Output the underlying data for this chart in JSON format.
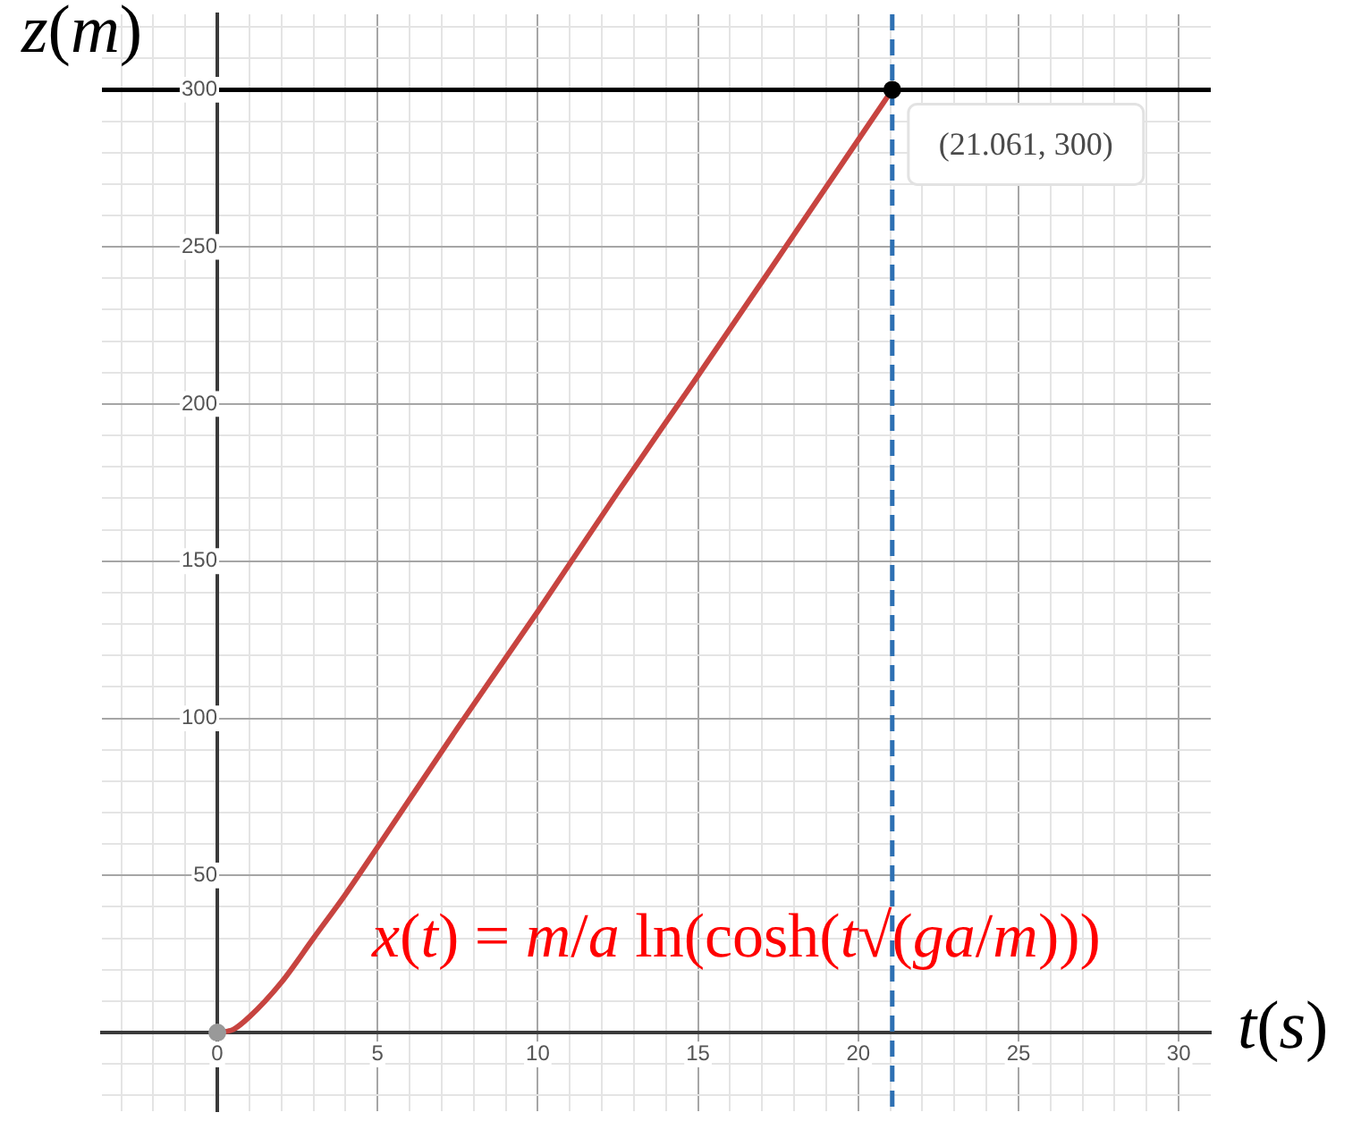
{
  "chart_data": {
    "type": "line",
    "xlabel": "t(s)",
    "ylabel": "z(m)",
    "x": [
      0,
      0.5,
      1,
      2,
      3,
      4,
      5,
      7.5,
      10,
      12.5,
      15,
      18,
      21.061
    ],
    "series": [
      {
        "color": "#c74440",
        "values": [
          0,
          1,
          5,
          16,
          30,
          44,
          59,
          97,
          134,
          172,
          209,
          254,
          300
        ]
      },
      {
        "type": "scatter",
        "marker": "circle",
        "x": [
          0,
          21.061
        ],
        "values": [
          0,
          300
        ],
        "colors": [
          "#999999",
          "#000000"
        ]
      }
    ],
    "xlim": [
      -3.6,
      31
    ],
    "ylim": [
      -25,
      324
    ],
    "xticks": [
      {
        "value": -3,
        "label": null
      },
      {
        "value": -2,
        "label": null
      },
      {
        "value": -1,
        "label": null
      },
      0,
      {
        "value": 1,
        "label": null
      },
      {
        "value": 2,
        "label": null
      },
      {
        "value": 3,
        "label": null
      },
      {
        "value": 4,
        "label": null
      },
      5,
      {
        "value": 6,
        "label": null
      },
      {
        "value": 7,
        "label": null
      },
      {
        "value": 8,
        "label": null
      },
      {
        "value": 9,
        "label": null
      },
      10,
      {
        "value": 11,
        "label": null
      },
      {
        "value": 12,
        "label": null
      },
      {
        "value": 13,
        "label": null
      },
      {
        "value": 14,
        "label": null
      },
      15,
      {
        "value": 16,
        "label": null
      },
      {
        "value": 17,
        "label": null
      },
      {
        "value": 18,
        "label": null
      },
      {
        "value": 19,
        "label": null
      },
      20,
      {
        "value": 21,
        "label": null
      },
      {
        "value": 22,
        "label": null
      },
      {
        "value": 23,
        "label": null
      },
      {
        "value": 24,
        "label": null
      },
      25,
      {
        "value": 26,
        "label": null
      },
      {
        "value": 27,
        "label": null
      },
      {
        "value": 28,
        "label": null
      },
      {
        "value": 29,
        "label": null
      },
      30
    ],
    "yticks": [
      {
        "value": -20,
        "label": null
      },
      {
        "value": -10,
        "label": null
      },
      {
        "value": 0,
        "label": null
      },
      {
        "value": 10,
        "label": null
      },
      {
        "value": 20,
        "label": null
      },
      {
        "value": 30,
        "label": null
      },
      {
        "value": 40,
        "label": null
      },
      50,
      {
        "value": 60,
        "label": null
      },
      {
        "value": 70,
        "label": null
      },
      {
        "value": 80,
        "label": null
      },
      {
        "value": 90,
        "label": null
      },
      100,
      {
        "value": 110,
        "label": null
      },
      {
        "value": 120,
        "label": null
      },
      {
        "value": 130,
        "label": null
      },
      {
        "value": 140,
        "label": null
      },
      150,
      {
        "value": 160,
        "label": null
      },
      {
        "value": 170,
        "label": null
      },
      {
        "value": 180,
        "label": null
      },
      {
        "value": 190,
        "label": null
      },
      200,
      {
        "value": 210,
        "label": null
      },
      {
        "value": 220,
        "label": null
      },
      {
        "value": 230,
        "label": null
      },
      {
        "value": 240,
        "label": null
      },
      250,
      {
        "value": 260,
        "label": null
      },
      {
        "value": 270,
        "label": null
      },
      {
        "value": 280,
        "label": null
      },
      {
        "value": 290,
        "label": null
      },
      300,
      {
        "value": 310,
        "label": null
      },
      {
        "value": 320,
        "label": null
      }
    ],
    "grid": true,
    "ref_lines": [
      {
        "axis": "y",
        "value": 300,
        "color": "#000000"
      },
      {
        "axis": "x",
        "value": 21.061,
        "color": "#2d70b3",
        "line_style": "dashed"
      }
    ],
    "annotations": [
      {
        "text": "(21.061, 300)",
        "x": 21.061,
        "y": 300
      },
      "x(t) = m/a ln(cosh(t√(ga/m)))"
    ]
  }
}
